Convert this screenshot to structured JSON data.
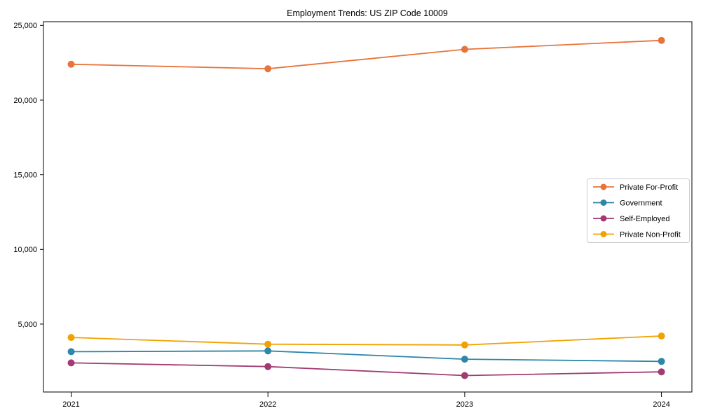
{
  "title": "Employment Trends: US ZIP Code 10009",
  "chart_data": {
    "type": "line",
    "title": "Employment Trends: US ZIP Code 10009",
    "xlabel": "",
    "ylabel": "",
    "x": [
      "2021",
      "2022",
      "2023",
      "2024"
    ],
    "series": [
      {
        "name": "Private For-Profit",
        "color": "#E8743B",
        "values": [
          22400,
          22100,
          23400,
          24000
        ]
      },
      {
        "name": "Government",
        "color": "#2E86A8",
        "values": [
          3150,
          3200,
          2650,
          2500
        ]
      },
      {
        "name": "Self-Employed",
        "color": "#A23B72",
        "values": [
          2400,
          2150,
          1550,
          1800
        ]
      },
      {
        "name": "Private Non-Profit",
        "color": "#F0A202",
        "values": [
          4100,
          3650,
          3600,
          4200
        ]
      }
    ],
    "ylim": [
      450,
      25250
    ],
    "yticks": [
      5000,
      10000,
      15000,
      20000,
      25000
    ],
    "ytick_labels": [
      "5,000",
      "10,000",
      "15,000",
      "20,000",
      "25,000"
    ],
    "grid": false,
    "legend_position": "right-middle",
    "frame": "full-box"
  },
  "colors": {
    "axis": "#000000",
    "text": "#000000",
    "legend_border": "#cccccc",
    "legend_background": "#ffffff"
  }
}
